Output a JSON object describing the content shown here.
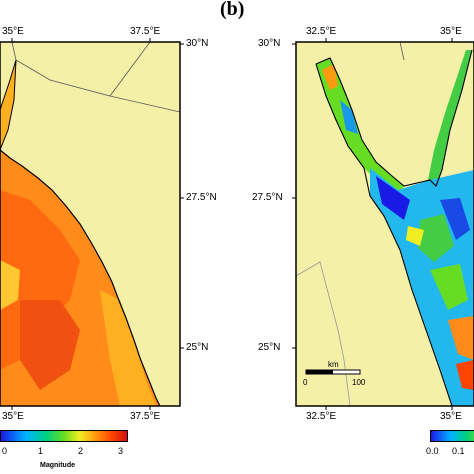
{
  "panel_label": "(b)",
  "left_map": {
    "top_ticks": [
      "35°E",
      "37.5°E"
    ],
    "bottom_ticks": [
      "35°E",
      "37.5°E"
    ],
    "right_ticks": [
      "30°N",
      "27.5°N",
      "25°N"
    ],
    "colorbar": {
      "ticks": [
        "0",
        "1",
        "2",
        "3"
      ],
      "title": "Magnitude"
    }
  },
  "right_map": {
    "top_ticks": [
      "32.5°E",
      "35°E"
    ],
    "bottom_ticks": [
      "32.5°E",
      "35°E"
    ],
    "left_ticks": [
      "30°N",
      "27.5°N",
      "25°N"
    ],
    "scale_bar": {
      "unit": "km",
      "ticks": [
        "0",
        "100"
      ]
    },
    "colorbar": {
      "ticks": [
        "0.0",
        "0.1"
      ]
    }
  },
  "colors": {
    "land": "#f5f0a8",
    "border": "#555555"
  }
}
